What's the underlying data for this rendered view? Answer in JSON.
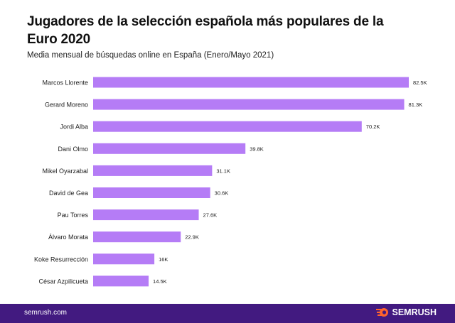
{
  "chart_data": {
    "type": "bar",
    "orientation": "horizontal",
    "title": "Jugadores de la selección española más populares de la Euro 2020",
    "subtitle": "Media mensual de búsquedas online en España (Enero/Mayo 2021)",
    "categories": [
      "Marcos Llorente",
      "Gerard Moreno",
      "Jordi Alba",
      "Dani Olmo",
      "Mikel Oyarzabal",
      "David de Gea",
      "Pau Torres",
      "Álvaro Morata",
      "Koke Resurrección",
      "César Azpilicueta"
    ],
    "values": [
      82.5,
      81.3,
      70.2,
      39.8,
      31.1,
      30.6,
      27.6,
      22.9,
      16,
      14.5
    ],
    "data_labels": [
      "82.5K",
      "81.3K",
      "70.2K",
      "39.8K",
      "31.1K",
      "30.6K",
      "27.6K",
      "22.9K",
      "16K",
      "14.5K"
    ],
    "unit": "K",
    "xlim": [
      0,
      82.5
    ],
    "grid": false,
    "bar_color": "#b57cf6"
  },
  "footer": {
    "site": "semrush.com",
    "brand": "SEMRUSH",
    "brand_icon": "semrush-fireball-icon",
    "background": "#421a80",
    "icon_color": "#ff642d"
  }
}
